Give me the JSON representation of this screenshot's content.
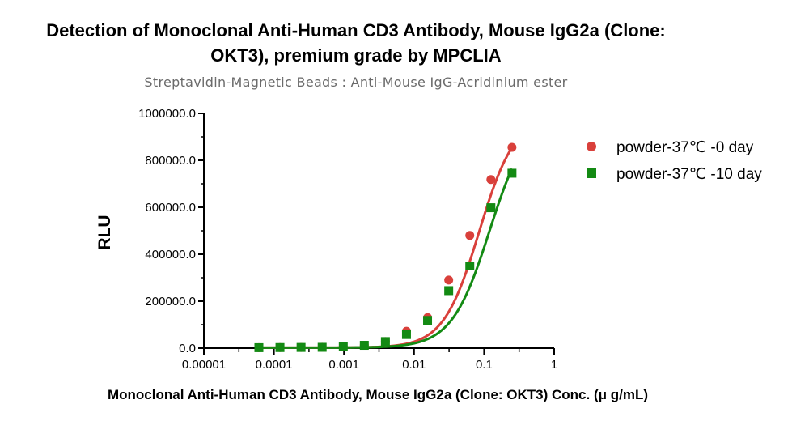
{
  "chart_data": {
    "type": "scatter",
    "title_line1": "Detection of Monoclonal Anti-Human CD3 Antibody, Mouse IgG2a (Clone:",
    "title_line2": "OKT3), premium grade by MPCLIA",
    "subtitle": "Streptavidin-Magnetic Beads : Anti-Mouse IgG-Acridinium ester",
    "xlabel": "Monoclonal Anti-Human CD3 Antibody, Mouse IgG2a (Clone: OKT3) Conc. (μ g/mL)",
    "ylabel": "RLU",
    "x_scale": "log",
    "xlim": [
      1e-05,
      1
    ],
    "ylim": [
      0,
      1000000
    ],
    "x_ticks": [
      1e-05,
      0.0001,
      0.001,
      0.01,
      0.1,
      1
    ],
    "x_tick_labels": [
      "0.00001",
      "0.0001",
      "0.001",
      "0.01",
      "0.1",
      "1"
    ],
    "y_ticks": [
      0,
      200000,
      400000,
      600000,
      800000,
      1000000
    ],
    "y_tick_labels": [
      "0.0",
      "200000.0",
      "400000.0",
      "600000.0",
      "800000.0",
      "1000000.0"
    ],
    "grid": false,
    "legend_position": "top-right",
    "series": [
      {
        "name": "powder-37℃ -0 day",
        "marker": "circle",
        "color": "#d9403b",
        "x": [
          6.1e-05,
          0.000122,
          0.000244,
          0.000488,
          0.000977,
          0.00195,
          0.0039,
          0.0078,
          0.0156,
          0.03125,
          0.0625,
          0.125,
          0.25
        ],
        "y": [
          2000,
          2500,
          3000,
          4000,
          6000,
          12000,
          28000,
          72000,
          130000,
          290000,
          480000,
          718000,
          855000
        ],
        "fit": {
          "bottom": 2000,
          "top": 990000,
          "ec50": 0.085,
          "hill": 1.7
        }
      },
      {
        "name": "powder-37℃ -10 day",
        "marker": "square",
        "color": "#138a13",
        "x": [
          6.1e-05,
          0.000122,
          0.000244,
          0.000488,
          0.000977,
          0.00195,
          0.0039,
          0.0078,
          0.0156,
          0.03125,
          0.0625,
          0.125,
          0.25
        ],
        "y": [
          2000,
          2500,
          3000,
          3500,
          6000,
          12000,
          28000,
          58000,
          118000,
          245000,
          350000,
          598000,
          745000
        ],
        "fit": {
          "bottom": 2000,
          "top": 1000000,
          "ec50": 0.12,
          "hill": 1.6
        }
      }
    ]
  }
}
